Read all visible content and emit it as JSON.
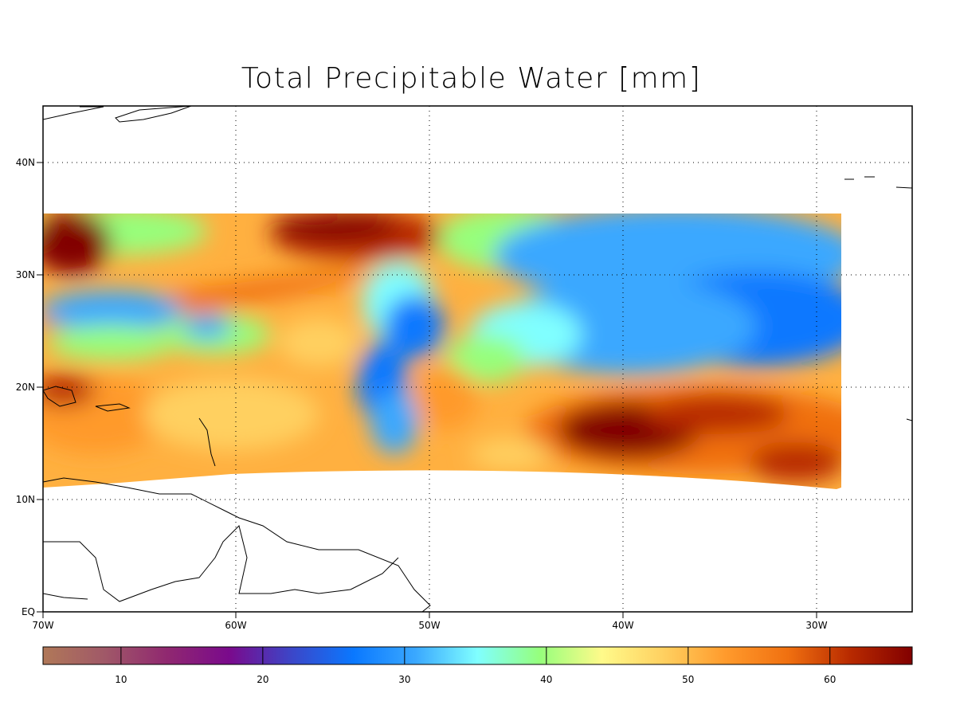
{
  "title": "Total Precipitable Water [mm]",
  "map": {
    "longitude_ticks": [
      "70W",
      "60W",
      "50W",
      "40W",
      "30W"
    ],
    "latitude_ticks": [
      "EQ",
      "10N",
      "20N",
      "30N",
      "40N"
    ],
    "data_extent": {
      "lon": [
        -70,
        -28.8
      ],
      "lat": [
        11,
        35.5
      ]
    },
    "grid": "dotted"
  },
  "colorbar": {
    "min": 4.5,
    "max": 65.8,
    "ticks": [
      "10",
      "20",
      "30",
      "40",
      "50",
      "60"
    ],
    "colors": [
      "#b07858",
      "#a05868",
      "#902870",
      "#7a0a8c",
      "#3c46c8",
      "#0a78ff",
      "#3aa8ff",
      "#80ffff",
      "#96ff7c",
      "#fffa8a",
      "#ffd060",
      "#ff9a2c",
      "#f07010",
      "#b82a00",
      "#820000"
    ]
  }
}
